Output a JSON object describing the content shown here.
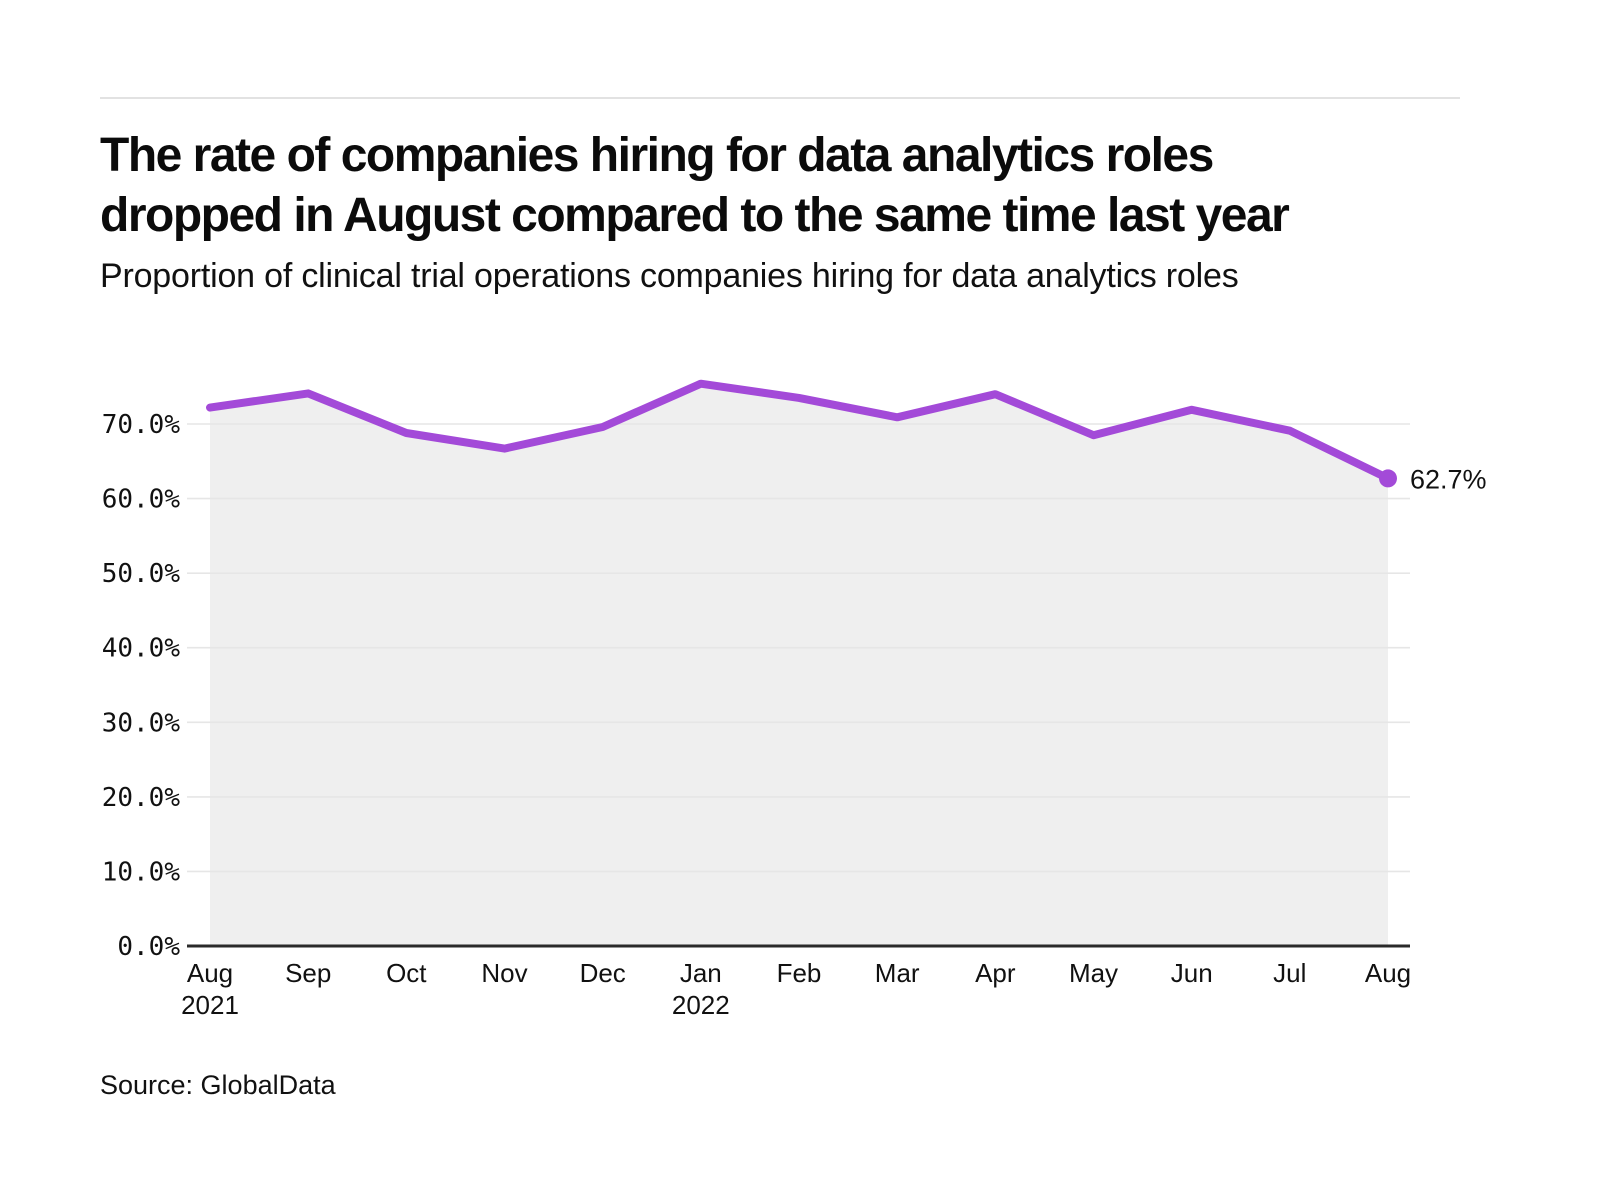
{
  "header": {
    "title_lines": [
      "The rate of companies hiring for data analytics roles",
      "dropped in August compared to the same time last year"
    ],
    "subtitle": "Proportion of clinical trial operations companies hiring for data analytics roles"
  },
  "chart_data": {
    "type": "area",
    "title": "The rate of companies hiring for data analytics roles dropped in August compared to the same time last year",
    "subtitle": "Proportion of clinical trial operations companies hiring for data analytics roles",
    "series_name": "Proportion of clinical trial operations companies hiring for data analytics roles",
    "categories": [
      "Aug 2021",
      "Sep",
      "Oct",
      "Nov",
      "Dec",
      "Jan 2022",
      "Feb",
      "Mar",
      "Apr",
      "May",
      "Jun",
      "Jul",
      "Aug 2022"
    ],
    "x_axis_labels": [
      [
        "Aug",
        "2021"
      ],
      [
        "Sep"
      ],
      [
        "Oct"
      ],
      [
        "Nov"
      ],
      [
        "Dec"
      ],
      [
        "Jan",
        "2022"
      ],
      [
        "Feb"
      ],
      [
        "Mar"
      ],
      [
        "Apr"
      ],
      [
        "May"
      ],
      [
        "Jun"
      ],
      [
        "Jul"
      ],
      [
        "Aug"
      ]
    ],
    "values": [
      72.2,
      74.1,
      68.8,
      66.7,
      69.6,
      75.4,
      73.5,
      70.9,
      74.0,
      68.5,
      71.9,
      69.1,
      62.7
    ],
    "unit": "%",
    "ylim": [
      0,
      76
    ],
    "ytick_labels": [
      "0.0%",
      "10.0%",
      "20.0%",
      "30.0%",
      "40.0%",
      "50.0%",
      "60.0%",
      "70.0%"
    ],
    "ytick_values": [
      0,
      10,
      20,
      30,
      40,
      50,
      60,
      70
    ],
    "grid": "horizontal",
    "legend_position": "none",
    "annotation": {
      "label": "62.7%",
      "point_index": 12,
      "point_value": 62.7
    }
  },
  "source": {
    "label": "Source: GlobalData"
  },
  "colors": {
    "line": "#a34ad8",
    "marker": "#a34ad8",
    "area_fill": "#efefef",
    "gridline": "#e6e6e6",
    "axis_line": "#2a2a2a",
    "text": "#111111",
    "divider": "#e2e2e2"
  }
}
